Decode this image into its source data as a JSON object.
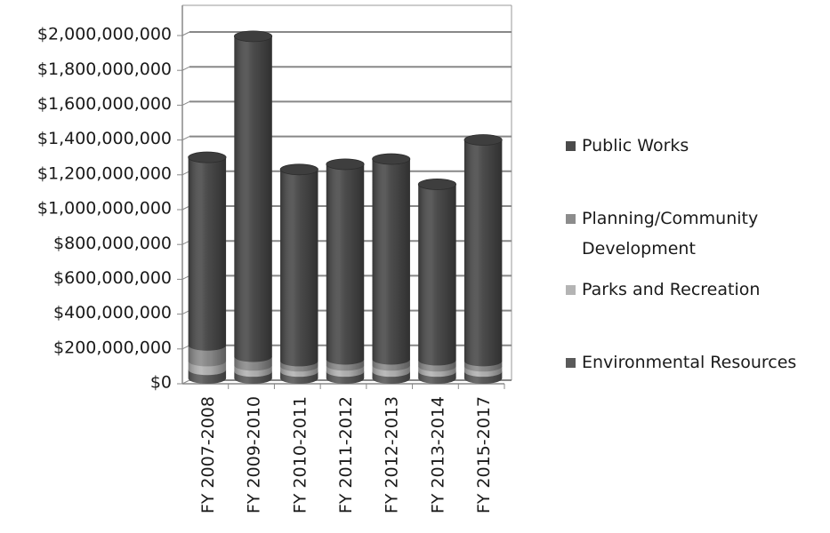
{
  "chart_data": {
    "type": "bar",
    "stacked": true,
    "style": "3d-cylinder",
    "title": "",
    "xlabel": "",
    "ylabel": "",
    "ylim": [
      0,
      2000000000
    ],
    "ytick_step": 200000000,
    "yticks": [
      "$0",
      "$200,000,000",
      "$400,000,000",
      "$600,000,000",
      "$800,000,000",
      "$1,000,000,000",
      "$1,200,000,000",
      "$1,400,000,000",
      "$1,600,000,000",
      "$1,800,000,000",
      "$2,000,000,000"
    ],
    "grid": true,
    "legend_position": "right",
    "categories": [
      "FY 2007-2008",
      "FY 2009-2010",
      "FY 2010-2011",
      "FY 2011-2012",
      "FY 2012-2013",
      "FY 2013-2014",
      "FY 2015-2017"
    ],
    "series": [
      {
        "name": "Environmental Resources",
        "color": "#5a5a5a",
        "values": [
          50000000,
          40000000,
          40000000,
          40000000,
          40000000,
          40000000,
          40000000
        ]
      },
      {
        "name": "Parks and Recreation",
        "color": "#b4b4b4",
        "values": [
          50000000,
          35000000,
          30000000,
          35000000,
          35000000,
          30000000,
          30000000
        ]
      },
      {
        "name": "Planning/Community Development",
        "color": "#8c8c8c",
        "values": [
          90000000,
          50000000,
          30000000,
          35000000,
          35000000,
          35000000,
          30000000
        ]
      },
      {
        "name": "Public Works",
        "color": "#4a4a4a",
        "values": [
          1080000000,
          1840000000,
          1100000000,
          1120000000,
          1150000000,
          1010000000,
          1270000000
        ]
      }
    ]
  },
  "legend": {
    "items": [
      {
        "lines": [
          "Public Works"
        ],
        "color": "#4a4a4a"
      },
      {
        "lines": [
          "Planning/Community",
          "Development"
        ],
        "color": "#8c8c8c"
      },
      {
        "lines": [
          "Parks and Recreation"
        ],
        "color": "#b4b4b4"
      },
      {
        "lines": [
          "Environmental Resources"
        ],
        "color": "#5a5a5a"
      }
    ]
  }
}
